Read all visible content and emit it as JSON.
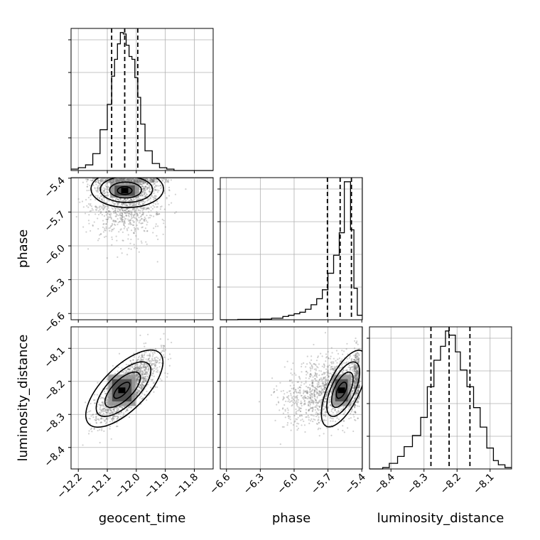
{
  "chart_data": {
    "type": "corner",
    "parameters": [
      "geocent_time",
      "phase",
      "luminosity_distance"
    ],
    "ticks": {
      "geocent_time": [
        "−12.2",
        "−12.1",
        "−12.0",
        "−11.9",
        "−11.8"
      ],
      "phase": [
        "−6.6",
        "−6.3",
        "−6.0",
        "−5.7",
        "−5.4"
      ],
      "luminosity_distance": [
        "−8.4",
        "−8.3",
        "−8.2",
        "−8.1"
      ]
    },
    "ranges": {
      "geocent_time": [
        -12.225,
        -11.735
      ],
      "phase": [
        -6.655,
        -5.395
      ],
      "luminosity_distance": [
        -8.465,
        -8.035
      ]
    },
    "grid": true,
    "histograms": {
      "geocent_time": {
        "edges": [
          -12.225,
          -12.2,
          -12.175,
          -12.15,
          -12.125,
          -12.1,
          -12.085,
          -12.075,
          -12.065,
          -12.055,
          -12.045,
          -12.035,
          -12.025,
          -12.015,
          -12.005,
          -11.995,
          -11.985,
          -11.97,
          -11.945,
          -11.92,
          -11.895,
          -11.87,
          -11.845,
          -11.82,
          -11.735
        ],
        "values": [
          0.01,
          0.02,
          0.04,
          0.12,
          0.29,
          0.47,
          0.67,
          0.79,
          0.9,
          0.98,
          0.97,
          0.89,
          0.81,
          0.79,
          0.66,
          0.52,
          0.33,
          0.14,
          0.05,
          0.02,
          0.01,
          0.0,
          0.0,
          0.0
        ],
        "quantiles": [
          -12.085,
          -12.04,
          -11.995
        ]
      },
      "phase": {
        "edges": [
          -6.655,
          -6.5,
          -6.3,
          -6.2,
          -6.1,
          -6.05,
          -6.0,
          -5.95,
          -5.9,
          -5.85,
          -5.8,
          -5.75,
          -5.7,
          -5.65,
          -5.6,
          -5.555,
          -5.53,
          -5.5,
          -5.47,
          -5.44,
          -5.395
        ],
        "values": [
          0.0,
          0.002,
          0.004,
          0.01,
          0.022,
          0.03,
          0.04,
          0.05,
          0.07,
          0.1,
          0.14,
          0.2,
          0.31,
          0.43,
          0.58,
          0.92,
          0.92,
          0.6,
          0.21,
          0.03
        ],
        "quantiles": [
          -5.705,
          -5.592,
          -5.492
        ]
      },
      "luminosity_distance": {
        "edges": [
          -8.465,
          -8.425,
          -8.405,
          -8.38,
          -8.36,
          -8.335,
          -8.31,
          -8.29,
          -8.27,
          -8.25,
          -8.235,
          -8.225,
          -8.205,
          -8.19,
          -8.17,
          -8.15,
          -8.13,
          -8.11,
          -8.09,
          -8.075,
          -8.055,
          -8.035
        ],
        "values": [
          0.0,
          0.01,
          0.04,
          0.09,
          0.16,
          0.24,
          0.37,
          0.59,
          0.78,
          0.88,
          0.99,
          0.96,
          0.84,
          0.71,
          0.59,
          0.44,
          0.3,
          0.15,
          0.06,
          0.03,
          0.01
        ],
        "quantiles": [
          -8.279,
          -8.224,
          -8.161
        ]
      }
    },
    "panels_2d": [
      {
        "x": "geocent_time",
        "y": "phase",
        "mean": [
          -12.03,
          -5.51
        ],
        "sd": [
          0.06,
          0.13
        ],
        "corr": 0.05,
        "peak": [
          -12.04,
          -5.51
        ],
        "contours": [
          {
            "dx": 0.025,
            "dy": 0.035
          },
          {
            "dx": 0.055,
            "dy": 0.07
          },
          {
            "dx": 0.09,
            "dy": 0.115
          },
          {
            "dx": 0.125,
            "dy": 0.165
          }
        ]
      },
      {
        "x": "geocent_time",
        "y": "luminosity_distance",
        "mean": [
          -12.03,
          -8.22
        ],
        "sd": [
          0.05,
          0.05
        ],
        "corr": 0.75,
        "peak": [
          -12.05,
          -8.227
        ],
        "contours": [
          {
            "dx": 0.025,
            "dy": 0.025
          },
          {
            "dx": 0.055,
            "dy": 0.055
          },
          {
            "dx": 0.085,
            "dy": 0.085
          },
          {
            "dx": 0.12,
            "dy": 0.12
          }
        ]
      },
      {
        "x": "phase",
        "y": "luminosity_distance",
        "mean": [
          -5.59,
          -8.22
        ],
        "sd": [
          0.18,
          0.05
        ],
        "corr": 0.35,
        "peak": [
          -5.58,
          -8.227
        ],
        "contours": [
          {
            "dx": 0.05,
            "dy": 0.025
          },
          {
            "dx": 0.1,
            "dy": 0.055
          },
          {
            "dx": 0.15,
            "dy": 0.085
          },
          {
            "dx": 0.2,
            "dy": 0.12
          }
        ]
      }
    ]
  }
}
